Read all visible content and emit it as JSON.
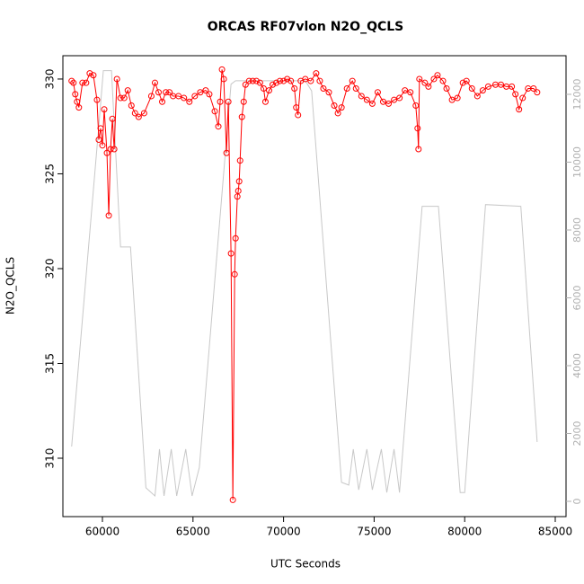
{
  "chart_data": {
    "type": "line",
    "title": "ORCAS RF07vlon N2O_QCLS",
    "x_label": "UTC Seconds",
    "y_label": "N2O_QCLS",
    "xlim": [
      57817,
      85595
    ],
    "ylim": [
      306.92,
      331.23
    ],
    "y2lim": [
      -450,
      13139
    ],
    "xticks": [
      60000,
      65000,
      70000,
      75000,
      80000,
      85000
    ],
    "yticks": [
      310,
      315,
      320,
      325,
      330
    ],
    "y2ticks": [
      0,
      2000,
      4000,
      6000,
      8000,
      10000,
      12000
    ],
    "series": [
      {
        "color": "#ff0000",
        "markers": true,
        "x": [
          58300,
          58400,
          58500,
          58600,
          58700,
          58900,
          59100,
          59300,
          59500,
          59700,
          59800,
          59900,
          60000,
          60100,
          60250,
          60350,
          60450,
          60550,
          60650,
          60800,
          61000,
          61200,
          61400,
          61600,
          61800,
          62000,
          62300,
          62700,
          62900,
          63100,
          63300,
          63500,
          63700,
          63900,
          64200,
          64500,
          64800,
          65100,
          65400,
          65700,
          65900,
          66200,
          66400,
          66500,
          66600,
          66700,
          66850,
          66950,
          67100,
          67200,
          67300,
          67350,
          67450,
          67500,
          67550,
          67600,
          67700,
          67800,
          67900,
          68100,
          68300,
          68500,
          68700,
          68900,
          69000,
          69200,
          69400,
          69600,
          69800,
          70000,
          70200,
          70400,
          70600,
          70700,
          70800,
          70950,
          71200,
          71500,
          71800,
          72000,
          72200,
          72500,
          72800,
          73000,
          73200,
          73500,
          73800,
          74000,
          74300,
          74600,
          74900,
          75200,
          75500,
          75800,
          76100,
          76400,
          76700,
          77000,
          77300,
          77400,
          77450,
          77500,
          77800,
          78000,
          78300,
          78500,
          78800,
          79000,
          79300,
          79600,
          79900,
          80100,
          80400,
          80700,
          81000,
          81300,
          81700,
          82000,
          82300,
          82600,
          82800,
          83000,
          83200,
          83500,
          83800,
          84000
        ],
        "values": [
          329.9,
          329.8,
          329.2,
          328.8,
          328.5,
          329.8,
          329.8,
          330.3,
          330.2,
          328.9,
          326.8,
          327.4,
          326.5,
          328.4,
          326.1,
          322.8,
          326.3,
          327.9,
          326.3,
          330.0,
          329.0,
          329.0,
          329.4,
          328.6,
          328.2,
          328.0,
          328.2,
          329.1,
          329.8,
          329.3,
          328.8,
          329.3,
          329.3,
          329.1,
          329.1,
          329.0,
          328.8,
          329.1,
          329.3,
          329.4,
          329.2,
          328.3,
          327.5,
          328.8,
          330.5,
          330.0,
          326.1,
          328.8,
          320.8,
          307.8,
          319.7,
          321.6,
          323.8,
          324.1,
          324.6,
          325.7,
          328.0,
          328.8,
          329.7,
          329.9,
          329.9,
          329.9,
          329.8,
          329.5,
          328.8,
          329.4,
          329.7,
          329.8,
          329.9,
          329.9,
          330.0,
          329.9,
          329.5,
          328.5,
          328.1,
          329.9,
          330.0,
          329.9,
          330.3,
          329.9,
          329.5,
          329.3,
          328.6,
          328.2,
          328.5,
          329.5,
          329.9,
          329.5,
          329.1,
          328.9,
          328.7,
          329.3,
          328.8,
          328.7,
          328.9,
          329.0,
          329.4,
          329.3,
          328.6,
          327.4,
          326.3,
          330.0,
          329.8,
          329.6,
          330.0,
          330.2,
          329.9,
          329.5,
          328.9,
          329.0,
          329.8,
          329.9,
          329.5,
          329.1,
          329.4,
          329.6,
          329.7,
          329.7,
          329.6,
          329.6,
          329.2,
          328.4,
          329.0,
          329.5,
          329.5,
          329.3
        ]
      },
      {
        "color": "#c8c8c8",
        "axis": "y2",
        "markers": false,
        "x": [
          58300,
          59800,
          60050,
          60500,
          61000,
          61550,
          62400,
          62900,
          63150,
          63400,
          63800,
          64100,
          64600,
          64950,
          65350,
          67100,
          67350,
          71200,
          71550,
          73200,
          73600,
          73850,
          74150,
          74600,
          74900,
          75400,
          75700,
          76100,
          76400,
          77650,
          78550,
          79750,
          80000,
          81150,
          83100,
          84000
        ],
        "values": [
          1616,
          11070,
          12700,
          12700,
          7500,
          7500,
          400,
          160,
          1540,
          160,
          1540,
          160,
          1540,
          160,
          1000,
          12300,
          12400,
          12400,
          12100,
          560,
          480,
          1540,
          340,
          1540,
          340,
          1540,
          260,
          1540,
          260,
          8700,
          8700,
          260,
          260,
          8750,
          8700,
          1750
        ]
      }
    ]
  }
}
